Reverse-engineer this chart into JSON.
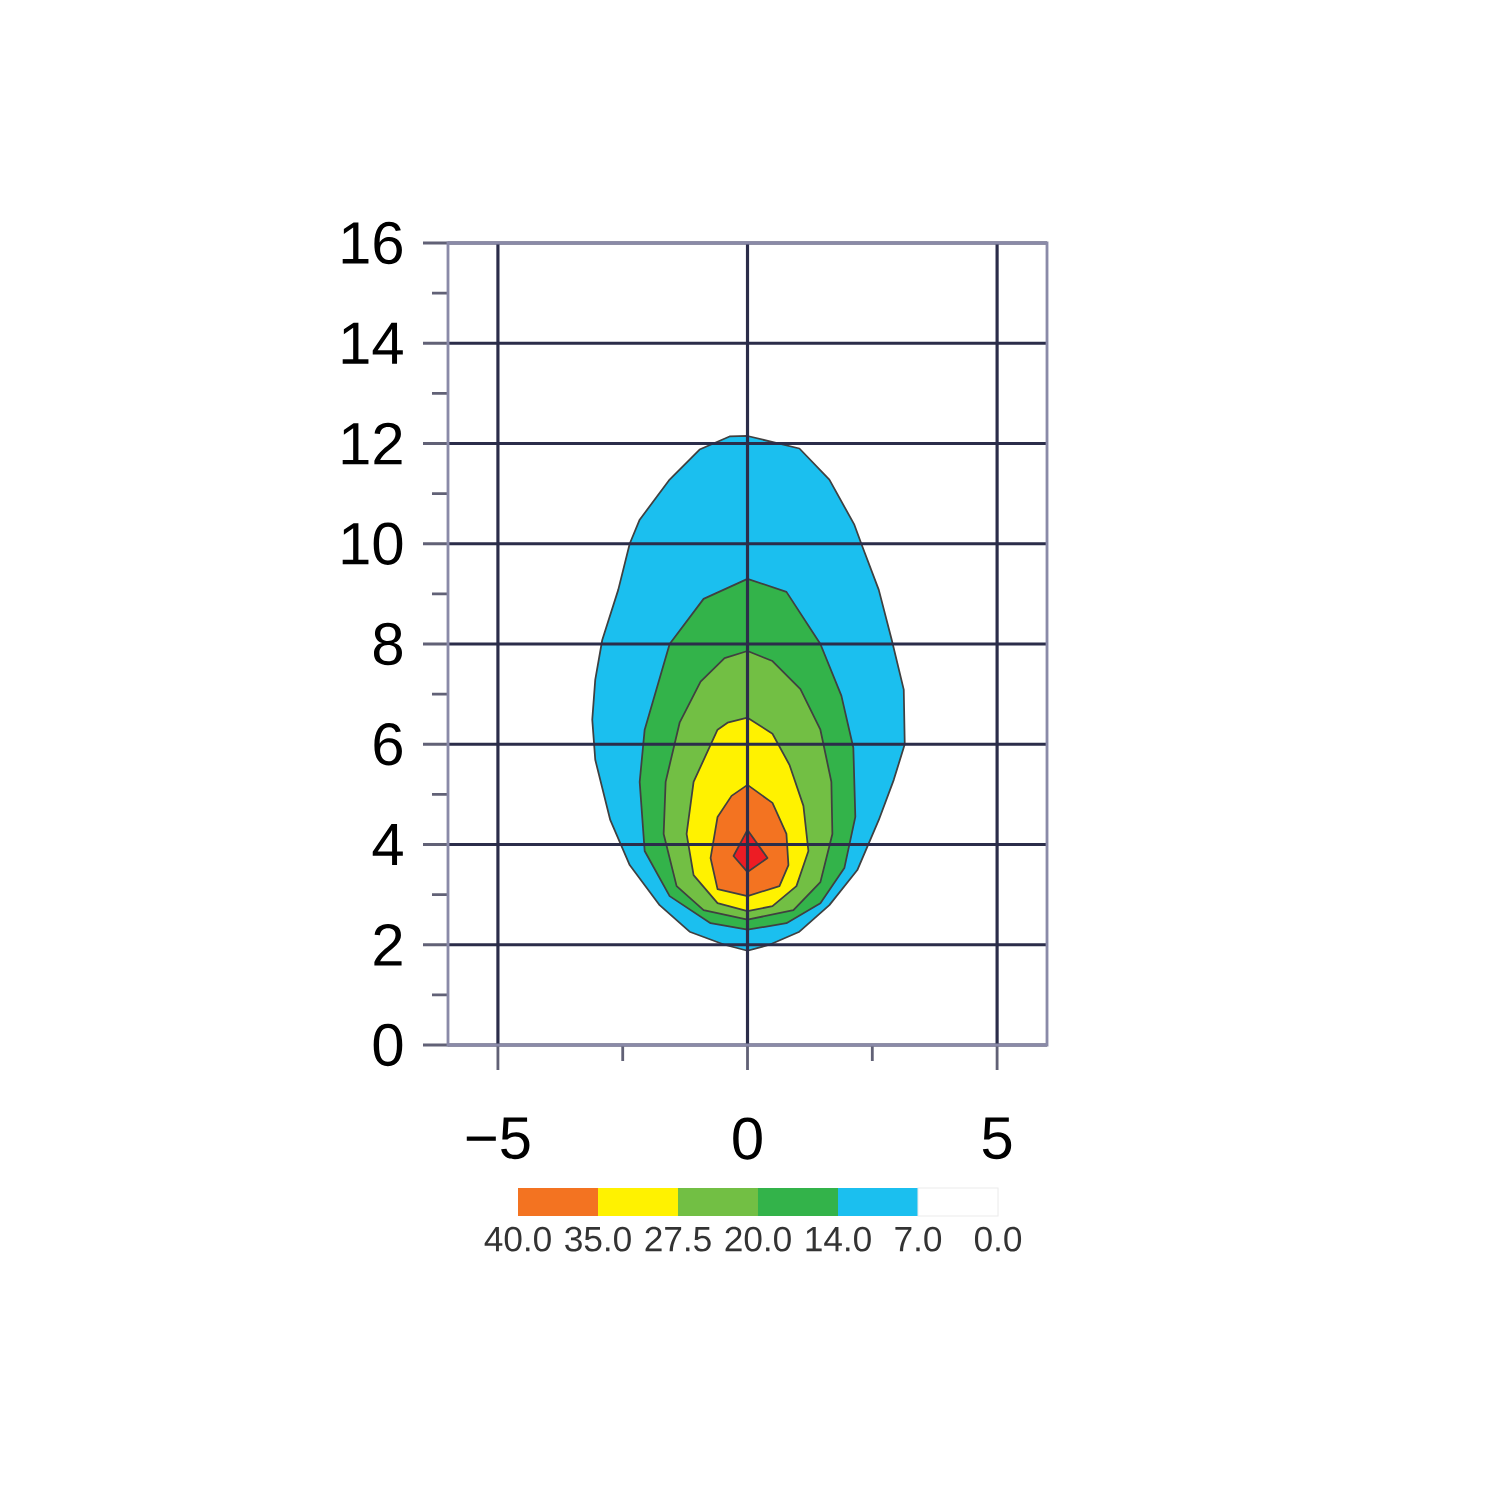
{
  "chart_data": {
    "type": "area",
    "xlim": [
      -6,
      6
    ],
    "ylim": [
      0,
      16
    ],
    "xticks": [
      {
        "value": -5,
        "label": "−5"
      },
      {
        "value": -2.5,
        "label": null
      },
      0,
      {
        "value": 2.5,
        "label": null
      },
      5
    ],
    "yticks": [
      0,
      {
        "value": 1,
        "label": null
      },
      2,
      {
        "value": 3,
        "label": null
      },
      4,
      {
        "value": 5,
        "label": null
      },
      6,
      {
        "value": 7,
        "label": null
      },
      8,
      {
        "value": 9,
        "label": null
      },
      10,
      {
        "value": 11,
        "label": null
      },
      12,
      {
        "value": 13,
        "label": null
      },
      14,
      {
        "value": 15,
        "label": null
      },
      16
    ],
    "grid": true,
    "cticks": [
      "40.0",
      "35.0",
      "27.5",
      "20.0",
      "14.0",
      "7.0",
      "0.0"
    ],
    "series": [
      {
        "color": "#1bbfef",
        "x": [
          0,
          1.04,
          1.64,
          2.14,
          2.28,
          2.63,
          2.89,
          3.13,
          3.15,
          2.93,
          2.63,
          2.2,
          1.64,
          1.04,
          0.44,
          0,
          -0.46,
          -1.16,
          -1.76,
          -2.36,
          -2.75,
          -3.05,
          -3.11,
          -3.05,
          -2.91,
          -2.59,
          -2.36,
          -2.16,
          -1.56,
          -0.96,
          -0.36
        ],
        "values": [
          12.15,
          11.9,
          11.28,
          10.38,
          10.0,
          9.08,
          8.08,
          7.09,
          6.0,
          5.29,
          4.49,
          3.49,
          2.79,
          2.26,
          2.0,
          1.88,
          2.0,
          2.26,
          2.79,
          3.59,
          4.49,
          5.69,
          6.49,
          7.29,
          8.08,
          9.08,
          10.0,
          10.48,
          11.28,
          11.88,
          12.14
        ]
      },
      {
        "color": "#33b34a",
        "x": [
          0,
          0.78,
          1.46,
          1.88,
          2.12,
          2.16,
          1.94,
          1.46,
          0.78,
          0,
          -0.74,
          -1.56,
          -2.06,
          -2.16,
          -2.06,
          -1.56,
          -0.88
        ],
        "values": [
          9.3,
          9.04,
          8.0,
          6.97,
          5.93,
          4.55,
          3.53,
          2.83,
          2.43,
          2.3,
          2.43,
          2.97,
          3.87,
          5.25,
          6.29,
          8.0,
          8.9
        ]
      },
      {
        "color": "#72bf44",
        "x": [
          0,
          0.5,
          1.06,
          1.46,
          1.68,
          1.7,
          1.46,
          0.92,
          0,
          -0.88,
          -1.42,
          -1.68,
          -1.64,
          -1.36,
          -0.94,
          -0.46
        ],
        "values": [
          7.86,
          7.66,
          7.1,
          6.29,
          5.25,
          4.21,
          3.25,
          2.69,
          2.5,
          2.69,
          3.17,
          4.21,
          5.25,
          6.43,
          7.25,
          7.72
        ]
      },
      {
        "color": "#fff200",
        "x": [
          0,
          0.5,
          0.84,
          1.12,
          1.22,
          0.98,
          0.5,
          0,
          -0.6,
          -1.08,
          -1.22,
          -1.08,
          -0.6,
          -0.4
        ],
        "values": [
          6.53,
          6.21,
          5.59,
          4.77,
          3.87,
          3.17,
          2.77,
          2.67,
          2.83,
          3.39,
          4.21,
          5.25,
          6.29,
          6.43
        ]
      },
      {
        "color": "#f37321",
        "x": [
          0,
          0.5,
          0.78,
          0.82,
          0.64,
          0,
          -0.6,
          -0.74,
          -0.6,
          -0.32
        ],
        "values": [
          5.19,
          4.83,
          4.21,
          3.59,
          3.17,
          2.97,
          3.11,
          3.73,
          4.55,
          4.97
        ]
      },
      {
        "color": "#ed1c24",
        "x": [
          0,
          0.4,
          0,
          -0.28
        ],
        "values": [
          4.29,
          3.73,
          3.45,
          3.77
        ]
      }
    ]
  }
}
